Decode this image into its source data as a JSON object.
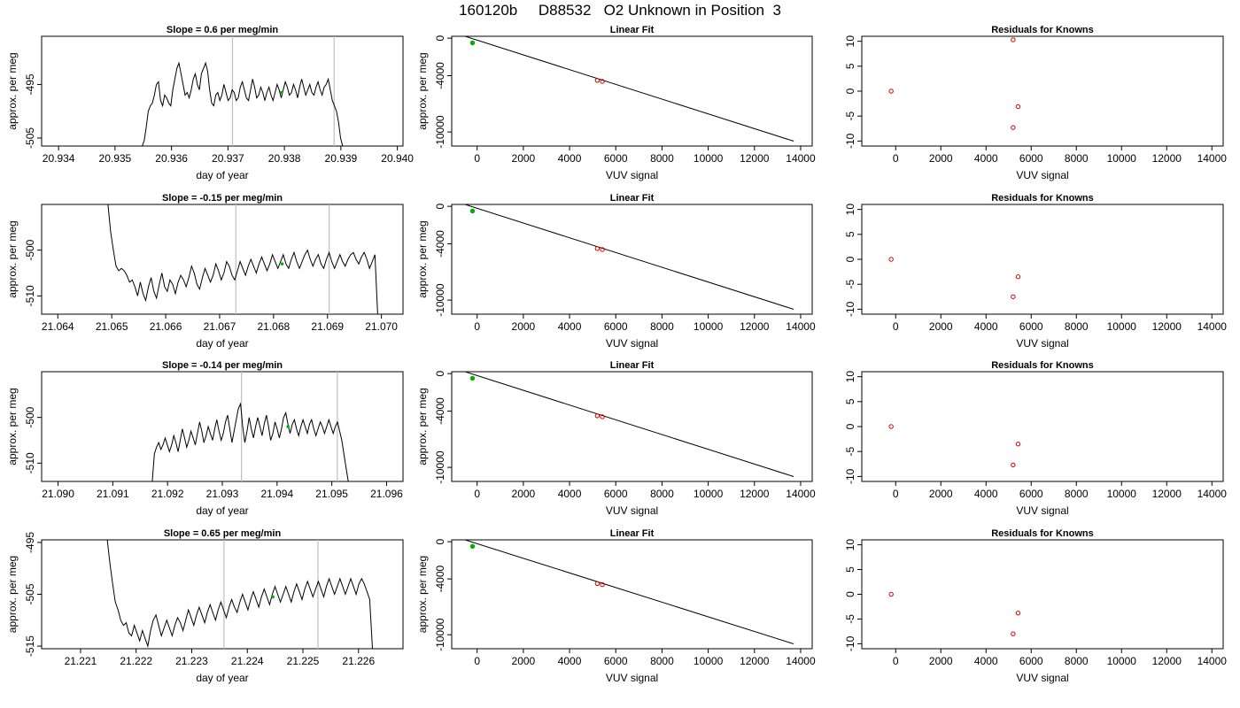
{
  "figure": {
    "title": "160120b     D88532   O2 Unknown in Position  3",
    "colors": {
      "trace": "#000000",
      "window_lines": "#bfbfbf",
      "known_points": "#cc0000",
      "unknown_point": "#00b000",
      "fit_line": "#000000"
    }
  },
  "chart_data": [
    {
      "panel": "row1-trace",
      "type": "line",
      "title": "Slope =  0.6  per meg/min",
      "xlabel": "day of year",
      "ylabel": "approx. per meg",
      "xlim": [
        20.9337,
        20.9401
      ],
      "ylim": [
        -506.5,
        -486
      ],
      "xticks": [
        "20.934",
        "20.935",
        "20.936",
        "20.937",
        "20.938",
        "20.939",
        "20.940"
      ],
      "yticks": [
        "-495",
        "-505"
      ],
      "ytick_values": [
        -495,
        -505
      ],
      "window_lines": [
        20.93708,
        20.93888
      ],
      "unknown_marker": {
        "x": 20.93795,
        "y": -496.5
      },
      "trace": {
        "x_start": 20.93548,
        "x_end": 20.93903,
        "y": [
          -506.5,
          -505.5,
          -503,
          -500,
          -499,
          -498.5,
          -497,
          -495,
          -494.5,
          -498,
          -499,
          -497,
          -497.5,
          -498.5,
          -499,
          -496,
          -494,
          -492,
          -491,
          -493,
          -495,
          -497,
          -496.5,
          -497.5,
          -496,
          -494,
          -493,
          -495,
          -496,
          -493,
          -492,
          -491,
          -492.5,
          -496,
          -498.5,
          -499,
          -497,
          -496.5,
          -498,
          -497,
          -495,
          -496.5,
          -498,
          -497.5,
          -496,
          -496.5,
          -498,
          -497.5,
          -495.5,
          -494.5,
          -496,
          -497.5,
          -498,
          -496,
          -494,
          -495.5,
          -497.5,
          -497,
          -495.5,
          -496.5,
          -498,
          -496.5,
          -495.5,
          -497,
          -498,
          -496.5,
          -495,
          -496,
          -497.5,
          -496,
          -494.5,
          -495.5,
          -497,
          -496.5,
          -495,
          -496,
          -497.5,
          -495.5,
          -494,
          -495.5,
          -497,
          -496,
          -495,
          -496.5,
          -497,
          -495.5,
          -494.5,
          -496,
          -497,
          -495.5,
          -495,
          -494,
          -496,
          -498,
          -499,
          -500,
          -502,
          -505,
          -506.5
        ]
      }
    },
    {
      "panel": "row1-fit",
      "type": "scatter",
      "title": "Linear Fit",
      "xlabel": "VUV signal",
      "ylabel": "approx. per meg",
      "xlim": [
        -1100,
        14500
      ],
      "ylim": [
        -11500,
        200
      ],
      "xticks": [
        0,
        2000,
        4000,
        6000,
        8000,
        10000,
        12000,
        14000
      ],
      "yticks": [
        "0",
        "-4000",
        "-10000"
      ],
      "ytick_values": [
        0,
        -4000,
        -10000
      ],
      "line": {
        "x": [
          -600,
          13700
        ],
        "y": [
          261,
          -10984
        ]
      },
      "known_points": [
        {
          "x": 5200,
          "y": -4500
        },
        {
          "x": 5420,
          "y": -4610
        }
      ],
      "unknown_point": {
        "x": -200,
        "y": -500
      }
    },
    {
      "panel": "row1-residuals",
      "type": "scatter",
      "title": "Residuals for Knowns",
      "xlabel": "VUV signal",
      "xlim": [
        -1500,
        14500
      ],
      "ylim": [
        -11,
        11
      ],
      "xticks": [
        0,
        2000,
        4000,
        6000,
        8000,
        10000,
        12000,
        14000
      ],
      "yticks": [
        "10",
        "5",
        "0",
        "-5",
        "-10"
      ],
      "ytick_values": [
        10,
        5,
        0,
        -5,
        -10
      ],
      "points": [
        {
          "x": -200,
          "y": 0
        },
        {
          "x": 5200,
          "y": 10.3
        },
        {
          "x": 5420,
          "y": -3.1
        },
        {
          "x": 5200,
          "y": -7.3
        }
      ]
    },
    {
      "panel": "row2-trace",
      "type": "line",
      "title": "Slope =  -0.15  per meg/min",
      "xlabel": "day of year",
      "ylabel": "approx. per meg",
      "xlim": [
        21.0637,
        21.0704
      ],
      "ylim": [
        -514,
        -490
      ],
      "xticks": [
        "21.064",
        "21.065",
        "21.066",
        "21.067",
        "21.068",
        "21.069",
        "21.070"
      ],
      "yticks": [
        "-500",
        "-510"
      ],
      "ytick_values": [
        -500,
        -510
      ],
      "window_lines": [
        21.0673,
        21.06903
      ],
      "unknown_marker": {
        "x": 21.06816,
        "y": -503
      },
      "trace": {
        "x_start": 21.06493,
        "x_end": 21.06993,
        "y": [
          -490,
          -496,
          -500,
          -503.5,
          -504.5,
          -504,
          -504.5,
          -505.5,
          -507,
          -506.5,
          -508,
          -510,
          -507,
          -509.5,
          -511,
          -508,
          -506,
          -509,
          -510.5,
          -507.5,
          -505,
          -508,
          -509,
          -506.5,
          -507.5,
          -509.5,
          -507,
          -505.5,
          -506.5,
          -508,
          -506,
          -503.5,
          -505,
          -507.5,
          -508.5,
          -506,
          -504,
          -505.5,
          -507,
          -505.5,
          -503,
          -504.5,
          -506.5,
          -505,
          -502.5,
          -503.5,
          -505.5,
          -506.5,
          -504.5,
          -502.5,
          -504,
          -505.5,
          -503.5,
          -502,
          -503.5,
          -505,
          -503,
          -501.5,
          -503,
          -504.5,
          -503,
          -501,
          -502.5,
          -504,
          -502.5,
          -501,
          -503,
          -504,
          -502,
          -500.5,
          -502.5,
          -504,
          -502.5,
          -501,
          -500,
          -502,
          -503.5,
          -502,
          -501,
          -503,
          -504,
          -502,
          -500.5,
          -502.5,
          -504,
          -502.5,
          -501,
          -502.5,
          -503.5,
          -502,
          -501,
          -500.5,
          -502,
          -503,
          -501.5,
          -500.5,
          -502,
          -504,
          -502.5,
          -501,
          -514
        ]
      }
    },
    {
      "panel": "row2-fit",
      "type": "scatter",
      "title": "Linear Fit",
      "xlabel": "VUV signal",
      "ylabel": "approx. per meg",
      "xlim": [
        -1100,
        14500
      ],
      "ylim": [
        -11500,
        200
      ],
      "xticks": [
        0,
        2000,
        4000,
        6000,
        8000,
        10000,
        12000,
        14000
      ],
      "yticks": [
        "0",
        "-4000",
        "-10000"
      ],
      "ytick_values": [
        0,
        -4000,
        -10000
      ],
      "line": {
        "x": [
          -600,
          13700
        ],
        "y": [
          261,
          -10984
        ]
      },
      "known_points": [
        {
          "x": 5200,
          "y": -4500
        },
        {
          "x": 5420,
          "y": -4610
        }
      ],
      "unknown_point": {
        "x": -200,
        "y": -500
      }
    },
    {
      "panel": "row2-residuals",
      "type": "scatter",
      "title": "Residuals for Knowns",
      "xlabel": "VUV signal",
      "xlim": [
        -1500,
        14500
      ],
      "ylim": [
        -11,
        11
      ],
      "xticks": [
        0,
        2000,
        4000,
        6000,
        8000,
        10000,
        12000,
        14000
      ],
      "yticks": [
        "10",
        "5",
        "0",
        "-5",
        "-10"
      ],
      "ytick_values": [
        10,
        5,
        0,
        -5,
        -10
      ],
      "points": [
        {
          "x": -200,
          "y": 0
        },
        {
          "x": 5420,
          "y": -3.5
        },
        {
          "x": 5200,
          "y": -7.5
        }
      ]
    },
    {
      "panel": "row3-trace",
      "type": "line",
      "title": "Slope =  -0.14  per meg/min",
      "xlabel": "day of year",
      "ylabel": "approx. per meg",
      "xlim": [
        21.0897,
        21.0963
      ],
      "ylim": [
        -514,
        -490
      ],
      "xticks": [
        "21.090",
        "21.091",
        "21.092",
        "21.093",
        "21.094",
        "21.095",
        "21.096"
      ],
      "yticks": [
        "-500",
        "-510"
      ],
      "ytick_values": [
        -500,
        -510
      ],
      "window_lines": [
        21.09335,
        21.0951
      ],
      "unknown_marker": {
        "x": 21.0942,
        "y": -502
      },
      "trace": {
        "x_start": 21.09172,
        "x_end": 21.0953,
        "y": [
          -514,
          -508,
          -506.5,
          -505.5,
          -507,
          -506,
          -504.5,
          -506,
          -507.5,
          -506,
          -504,
          -505.5,
          -507.5,
          -505,
          -502.5,
          -504.5,
          -506.5,
          -505,
          -503,
          -504.5,
          -506,
          -503.5,
          -501,
          -503,
          -505.5,
          -504,
          -502,
          -503.5,
          -505,
          -502.5,
          -500.5,
          -503,
          -505,
          -503.5,
          -501,
          -499.5,
          -502.5,
          -505.5,
          -503,
          -500.5,
          -498,
          -497,
          -502,
          -505.5,
          -503,
          -500,
          -502.5,
          -504.5,
          -502,
          -500,
          -502,
          -504,
          -501.5,
          -499.5,
          -502,
          -505,
          -503.5,
          -501,
          -502.5,
          -504.5,
          -502.5,
          -500,
          -499,
          -501.5,
          -503.5,
          -501.5,
          -500.5,
          -502.5,
          -504,
          -502,
          -500.5,
          -502,
          -503.5,
          -501.5,
          -500.5,
          -502.5,
          -504,
          -502.5,
          -501,
          -502,
          -503.5,
          -502,
          -500.5,
          -502,
          -503.5,
          -502,
          -501,
          -503,
          -505,
          -508,
          -511,
          -514
        ]
      }
    },
    {
      "panel": "row3-fit",
      "type": "scatter",
      "title": "Linear Fit",
      "xlabel": "VUV signal",
      "ylabel": "approx. per meg",
      "xlim": [
        -1100,
        14500
      ],
      "ylim": [
        -11500,
        200
      ],
      "xticks": [
        0,
        2000,
        4000,
        6000,
        8000,
        10000,
        12000,
        14000
      ],
      "yticks": [
        "0",
        "-4000",
        "-10000"
      ],
      "ytick_values": [
        0,
        -4000,
        -10000
      ],
      "line": {
        "x": [
          -600,
          13700
        ],
        "y": [
          261,
          -10984
        ]
      },
      "known_points": [
        {
          "x": 5200,
          "y": -4500
        },
        {
          "x": 5420,
          "y": -4610
        }
      ],
      "unknown_point": {
        "x": -200,
        "y": -500
      }
    },
    {
      "panel": "row3-residuals",
      "type": "scatter",
      "title": "Residuals for Knowns",
      "xlabel": "VUV signal",
      "xlim": [
        -1500,
        14500
      ],
      "ylim": [
        -11,
        11
      ],
      "xticks": [
        0,
        2000,
        4000,
        6000,
        8000,
        10000,
        12000,
        14000
      ],
      "yticks": [
        "10",
        "5",
        "0",
        "-5",
        "-10"
      ],
      "ytick_values": [
        10,
        5,
        0,
        -5,
        -10
      ],
      "points": [
        {
          "x": -200,
          "y": 0
        },
        {
          "x": 5420,
          "y": -3.5
        },
        {
          "x": 5200,
          "y": -7.7
        }
      ]
    },
    {
      "panel": "row4-trace",
      "type": "line",
      "title": "Slope =  0.65  per meg/min",
      "xlabel": "day of year",
      "ylabel": "approx. per meg",
      "xlim": [
        21.2203,
        21.2268
      ],
      "ylim": [
        -515.5,
        -494.5
      ],
      "xticks": [
        "21.221",
        "21.222",
        "21.223",
        "21.224",
        "21.225",
        "21.226"
      ],
      "yticks": [
        "-495",
        "-505",
        "-515"
      ],
      "ytick_values": [
        -495,
        -505,
        -515
      ],
      "window_lines": [
        21.22358,
        21.22527
      ],
      "unknown_marker": {
        "x": 21.22446,
        "y": -505.5
      },
      "trace": {
        "x_start": 21.22148,
        "x_end": 21.22625,
        "y": [
          -494.5,
          -499,
          -503,
          -506.5,
          -508,
          -510,
          -511,
          -510.5,
          -512.5,
          -513,
          -511,
          -512.5,
          -514,
          -512,
          -513.5,
          -515,
          -512,
          -510,
          -509,
          -511,
          -513,
          -511.5,
          -510,
          -511.5,
          -513,
          -511,
          -509.5,
          -510.5,
          -512,
          -510,
          -508,
          -509.5,
          -511,
          -509,
          -507.5,
          -509,
          -510.5,
          -508.5,
          -507,
          -508.5,
          -510,
          -508,
          -506.5,
          -508,
          -509.5,
          -507.5,
          -506,
          -507.5,
          -508.5,
          -506.5,
          -505,
          -506.5,
          -508,
          -506,
          -504.5,
          -506,
          -507.5,
          -505.5,
          -504,
          -505.5,
          -507,
          -505,
          -503.5,
          -505,
          -506.5,
          -505,
          -503.5,
          -505,
          -506.5,
          -504.5,
          -503,
          -504.5,
          -506,
          -504,
          -502.5,
          -504,
          -505.5,
          -504,
          -502.5,
          -504,
          -505.5,
          -503.5,
          -502,
          -503.5,
          -505,
          -503.5,
          -502,
          -503.5,
          -505,
          -503.5,
          -502,
          -503.5,
          -505,
          -503,
          -502,
          -503,
          -504.5,
          -506,
          -515.5
        ]
      }
    },
    {
      "panel": "row4-fit",
      "type": "scatter",
      "title": "Linear Fit",
      "xlabel": "VUV signal",
      "ylabel": "approx. per meg",
      "xlim": [
        -1100,
        14500
      ],
      "ylim": [
        -11500,
        200
      ],
      "xticks": [
        0,
        2000,
        4000,
        6000,
        8000,
        10000,
        12000,
        14000
      ],
      "yticks": [
        "0",
        "-4000",
        "-10000"
      ],
      "ytick_values": [
        0,
        -4000,
        -10000
      ],
      "line": {
        "x": [
          -600,
          13700
        ],
        "y": [
          261,
          -10984
        ]
      },
      "known_points": [
        {
          "x": 5200,
          "y": -4500
        },
        {
          "x": 5420,
          "y": -4610
        }
      ],
      "unknown_point": {
        "x": -200,
        "y": -500
      }
    },
    {
      "panel": "row4-residuals",
      "type": "scatter",
      "title": "Residuals for Knowns",
      "xlabel": "VUV signal",
      "xlim": [
        -1500,
        14500
      ],
      "ylim": [
        -11,
        11
      ],
      "xticks": [
        0,
        2000,
        4000,
        6000,
        8000,
        10000,
        12000,
        14000
      ],
      "yticks": [
        "10",
        "5",
        "0",
        "-5",
        "-10"
      ],
      "ytick_values": [
        10,
        5,
        0,
        -5,
        -10
      ],
      "points": [
        {
          "x": -200,
          "y": 0
        },
        {
          "x": 5420,
          "y": -3.8
        },
        {
          "x": 5200,
          "y": -8.0
        }
      ]
    }
  ]
}
